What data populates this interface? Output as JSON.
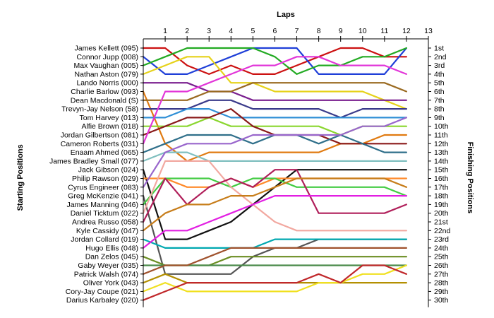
{
  "chart_data": {
    "type": "line",
    "title": "",
    "xlabel": "Laps",
    "ylabel_left": "Starting Positions",
    "ylabel_right": "Finishing Positions",
    "x_ticks": [
      1,
      2,
      3,
      4,
      5,
      6,
      7,
      8,
      9,
      10,
      11,
      12,
      13
    ],
    "xlim": [
      0,
      13
    ],
    "ylim": [
      1,
      30
    ],
    "grid": false,
    "start_labels": [
      "James Kellett (095)",
      "Connor Jupp (008)",
      "Max Vaughan (005)",
      "Nathan Aston (079)",
      "Lando Norris (000)",
      "Charlie Barlow (093)",
      "Dean Macdonald (S)",
      "Trevyn-Jay Nelson (58)",
      "Tom Harvey (013)",
      "Alfie Brown (018)",
      "Jordan Gilbertson (081)",
      "Cameron Roberts (031)",
      "Enaam Ahmed (065)",
      "James Bradley Small (077)",
      "Jack Gibson (024)",
      "Philip Rawson (029)",
      "Cyrus Engineer (083)",
      "Greg McKenzie (041)",
      "James Manning (046)",
      "Daniel Ticktum (022)",
      "Andrea Russo (058)",
      "Kyle Cassidy (047)",
      "Jordan Collard (019)",
      "Hugo Ellis (048)",
      "Dan Zelos (045)",
      "Gaby Weyer (035)",
      "Patrick Walsh (074)",
      "Oliver York (043)",
      "Cory-Jay Coupe (021)",
      "Darius Karbaley (020)"
    ],
    "finish_labels": [
      "1st",
      "2nd",
      "3rd",
      "4th",
      "5th",
      "6th",
      "7th",
      "8th",
      "9th",
      "10th",
      "11th",
      "12th",
      "13th",
      "14th",
      "15th",
      "16th",
      "17th",
      "18th",
      "19th",
      "20th",
      "21st",
      "22nd",
      "23rd",
      "24th",
      "25th",
      "26th",
      "27th",
      "28th",
      "29th",
      "30th"
    ],
    "series": [
      {
        "color": "#cc1111",
        "values": [
          1,
          1,
          3,
          4,
          3,
          4,
          4,
          3,
          2,
          1,
          1,
          2,
          2
        ]
      },
      {
        "color": "#1f3fd8",
        "values": [
          2,
          4,
          4,
          3,
          2,
          1,
          1,
          1,
          4,
          4,
          4,
          4,
          1
        ]
      },
      {
        "color": "#22aa22",
        "values": [
          3,
          2,
          1,
          1,
          1,
          1,
          2,
          4,
          3,
          3,
          2,
          2,
          1
        ]
      },
      {
        "color": "#e6d21a",
        "values": [
          4,
          3,
          2,
          2,
          5,
          5,
          6,
          6,
          6,
          6,
          6,
          7,
          8
        ]
      },
      {
        "color": "#7a1f8f",
        "values": [
          5,
          5,
          5,
          6,
          6,
          7,
          7,
          7,
          7,
          7,
          7,
          7,
          7
        ]
      },
      {
        "color": "#e07a10",
        "values": [
          6,
          12,
          14,
          13,
          13,
          13,
          13,
          13,
          13,
          12,
          12,
          11,
          11
        ]
      },
      {
        "color": "#9a6a20",
        "values": [
          7,
          7,
          7,
          6,
          6,
          5,
          5,
          5,
          5,
          5,
          5,
          5,
          6
        ]
      },
      {
        "color": "#3a3a8a",
        "values": [
          8,
          8,
          8,
          7,
          7,
          8,
          8,
          8,
          8,
          9,
          8,
          8,
          8
        ]
      },
      {
        "color": "#2f8fd6",
        "values": [
          9,
          9,
          8,
          8,
          9,
          9,
          9,
          9,
          9,
          9,
          9,
          9,
          9
        ]
      },
      {
        "color": "#8ad62f",
        "values": [
          10,
          10,
          10,
          9,
          10,
          10,
          10,
          10,
          10,
          11,
          10,
          10,
          10
        ]
      },
      {
        "color": "#8a1a1a",
        "values": [
          11,
          10,
          9,
          9,
          8,
          10,
          11,
          11,
          11,
          12,
          12,
          12,
          12
        ]
      },
      {
        "color": "#e235d8",
        "values": [
          12,
          6,
          6,
          5,
          4,
          3,
          3,
          2,
          2,
          3,
          3,
          3,
          4
        ]
      },
      {
        "color": "#2f6f8a",
        "values": [
          13,
          12,
          11,
          11,
          11,
          12,
          11,
          11,
          12,
          11,
          12,
          13,
          13
        ]
      },
      {
        "color": "#7fbfbf",
        "values": [
          14,
          13,
          13,
          14,
          14,
          14,
          14,
          14,
          14,
          14,
          14,
          14,
          14
        ]
      },
      {
        "color": "#111111",
        "values": [
          15,
          23,
          23,
          22,
          21,
          19,
          17,
          15,
          15,
          15,
          15,
          15,
          15
        ]
      },
      {
        "color": "#ff8a2a",
        "values": [
          16,
          16,
          17,
          17,
          16,
          17,
          16,
          16,
          16,
          16,
          16,
          16,
          16
        ]
      },
      {
        "color": "#9966cc",
        "values": [
          17,
          13,
          12,
          12,
          12,
          11,
          11,
          11,
          11,
          11,
          10,
          10,
          9
        ]
      },
      {
        "color": "#555555",
        "values": [
          18,
          27,
          27,
          27,
          27,
          25,
          24,
          24,
          23,
          23,
          23,
          23,
          23
        ]
      },
      {
        "color": "#44cc44",
        "values": [
          19,
          16,
          16,
          16,
          17,
          16,
          16,
          17,
          17,
          17,
          17,
          17,
          18
        ]
      },
      {
        "color": "#f2a8a0",
        "values": [
          20,
          14,
          14,
          14,
          17,
          19,
          21,
          22,
          22,
          22,
          22,
          22,
          22
        ]
      },
      {
        "color": "#b01f5a",
        "values": [
          21,
          16,
          19,
          17,
          16,
          17,
          15,
          15,
          20,
          20,
          20,
          20,
          19
        ]
      },
      {
        "color": "#c77d1a",
        "values": [
          22,
          20,
          19,
          19,
          18,
          18,
          17,
          16,
          16,
          16,
          16,
          16,
          17
        ]
      },
      {
        "color": "#00a8b0",
        "values": [
          23,
          24,
          24,
          24,
          24,
          24,
          23,
          23,
          23,
          23,
          23,
          23,
          23
        ]
      },
      {
        "color": "#e21fe2",
        "values": [
          24,
          22,
          22,
          21,
          20,
          19,
          18,
          18,
          18,
          18,
          18,
          18,
          18
        ]
      },
      {
        "color": "#6b8e23",
        "values": [
          25,
          26,
          26,
          26,
          25,
          25,
          25,
          25,
          25,
          25,
          25,
          25,
          25
        ]
      },
      {
        "color": "#4a8a4a",
        "values": [
          26,
          26,
          26,
          26,
          26,
          26,
          26,
          26,
          26,
          26,
          26,
          26,
          26
        ]
      },
      {
        "color": "#a0522d",
        "values": [
          27,
          26,
          26,
          25,
          24,
          24,
          24,
          24,
          24,
          24,
          24,
          24,
          24
        ]
      },
      {
        "color": "#b38f00",
        "values": [
          28,
          27,
          28,
          28,
          28,
          28,
          28,
          28,
          28,
          28,
          28,
          28,
          28
        ]
      },
      {
        "color": "#f0e020",
        "values": [
          29,
          28,
          29,
          29,
          29,
          29,
          29,
          29,
          28,
          28,
          27,
          27,
          26
        ]
      },
      {
        "color": "#c0282b",
        "values": [
          30,
          29,
          28,
          28,
          28,
          28,
          28,
          28,
          27,
          28,
          26,
          26,
          27
        ]
      }
    ]
  }
}
